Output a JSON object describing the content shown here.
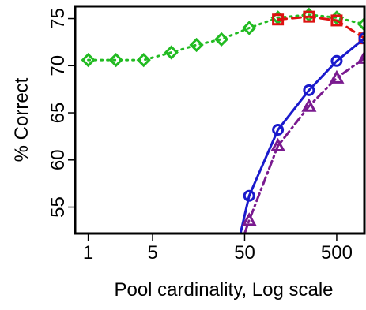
{
  "chart_data": {
    "type": "line",
    "title": "",
    "xlabel": "Pool cardinality, Log scale",
    "ylabel": "% Correct",
    "x_scale": "log10",
    "xlim": [
      0.72,
      1000
    ],
    "ylim": [
      52.2,
      76.3
    ],
    "grid": false,
    "legend": "none",
    "x_ticks": [
      {
        "value": 1,
        "label": "1"
      },
      {
        "value": 5,
        "label": "5"
      },
      {
        "value": 50,
        "label": "50"
      },
      {
        "value": 500,
        "label": "500"
      }
    ],
    "y_ticks": [
      {
        "value": 55,
        "label": "55"
      },
      {
        "value": 60,
        "label": "60"
      },
      {
        "value": 65,
        "label": "65"
      },
      {
        "value": 70,
        "label": "70"
      },
      {
        "value": 75,
        "label": "75"
      }
    ],
    "series": [
      {
        "color": "#22bb22",
        "marker": "diamond",
        "line_style": "dotted",
        "points": [
          {
            "x": 1,
            "y": 70.6
          },
          {
            "x": 2,
            "y": 70.6
          },
          {
            "x": 4,
            "y": 70.6
          },
          {
            "x": 8,
            "y": 71.4
          },
          {
            "x": 15,
            "y": 72.2
          },
          {
            "x": 28,
            "y": 72.8
          },
          {
            "x": 56,
            "y": 74.0
          },
          {
            "x": 115,
            "y": 75.1
          },
          {
            "x": 250,
            "y": 75.4
          },
          {
            "x": 500,
            "y": 75.1
          },
          {
            "x": 1000,
            "y": 74.4
          }
        ]
      },
      {
        "color": "#dd1111",
        "marker": "square",
        "line_style": "dashed",
        "points": [
          {
            "x": 115,
            "y": 74.9
          },
          {
            "x": 250,
            "y": 75.2
          },
          {
            "x": 500,
            "y": 74.8
          },
          {
            "x": 1000,
            "y": 72.9
          }
        ]
      },
      {
        "color": "#1a1acc",
        "marker": "circle",
        "line_style": "solid",
        "points": [
          {
            "x": 45,
            "y": 52.2
          },
          {
            "x": 56,
            "y": 56.2
          },
          {
            "x": 115,
            "y": 63.2
          },
          {
            "x": 250,
            "y": 67.4
          },
          {
            "x": 500,
            "y": 70.5
          },
          {
            "x": 1000,
            "y": 72.9
          }
        ]
      },
      {
        "color": "#7a1a8f",
        "marker": "triangle",
        "line_style": "dashdot",
        "points": [
          {
            "x": 50,
            "y": 52.2
          },
          {
            "x": 56,
            "y": 53.6
          },
          {
            "x": 115,
            "y": 61.5
          },
          {
            "x": 250,
            "y": 65.7
          },
          {
            "x": 500,
            "y": 68.7
          },
          {
            "x": 1000,
            "y": 70.8
          }
        ]
      }
    ]
  }
}
